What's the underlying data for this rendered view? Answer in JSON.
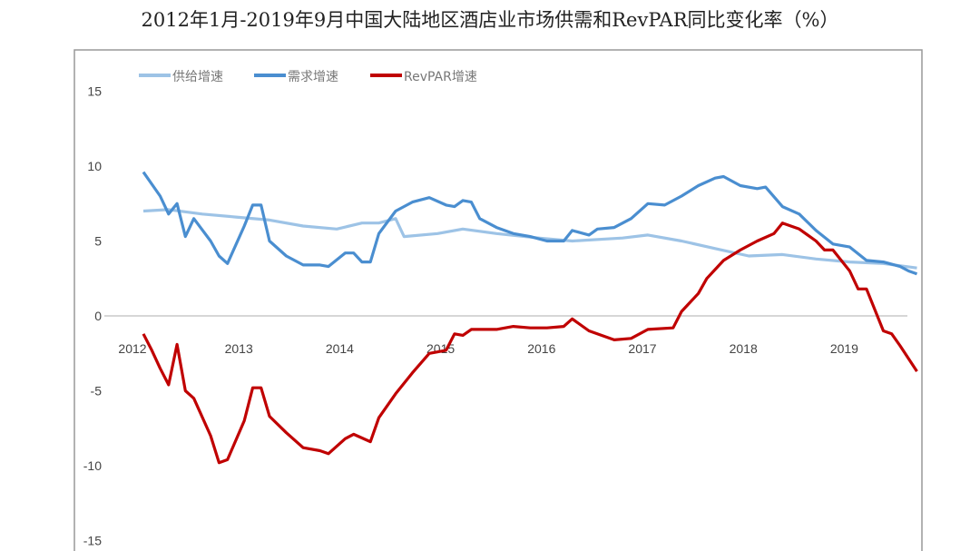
{
  "chart_data": {
    "type": "line",
    "title": "2012年1月-2019年9月中国大陆地区酒店业市场供需和RevPAR同比变化率（%）",
    "xlabel": "",
    "ylabel": "",
    "ylim": [
      -15,
      15
    ],
    "yticks": [
      "15",
      "10",
      "5",
      "0",
      "-5",
      "-10",
      "-15"
    ],
    "ytick_values": [
      15,
      10,
      5,
      0,
      -5,
      -10,
      -15
    ],
    "xticks": [
      "2012",
      "2013",
      "2014",
      "2015",
      "2016",
      "2017",
      "2018",
      "2019"
    ],
    "grid": false,
    "legend_position": "top-left",
    "series": [
      {
        "name": "供给增速",
        "color": "#9dc3e6",
        "x": [
          "2012-01",
          "2012-04",
          "2012-08",
          "2012-12",
          "2013-04",
          "2013-08",
          "2013-12",
          "2014-03",
          "2014-05",
          "2014-07",
          "2014-08",
          "2014-12",
          "2015-03",
          "2015-07",
          "2015-12",
          "2016-04",
          "2016-10",
          "2017-01",
          "2017-05",
          "2017-09",
          "2018-01",
          "2018-05",
          "2018-09",
          "2019-01",
          "2019-05",
          "2019-09"
        ],
        "values": [
          7.0,
          7.1,
          6.8,
          6.6,
          6.4,
          6.0,
          5.8,
          6.2,
          6.2,
          6.5,
          5.3,
          5.5,
          5.8,
          5.5,
          5.2,
          5.0,
          5.2,
          5.4,
          5.0,
          4.5,
          4.0,
          4.1,
          3.8,
          3.6,
          3.5,
          3.2
        ]
      },
      {
        "name": "需求增速",
        "color": "#4a8ed0",
        "x": [
          "2012-01",
          "2012-03",
          "2012-04",
          "2012-05",
          "2012-06",
          "2012-07",
          "2012-09",
          "2012-10",
          "2012-11",
          "2013-01",
          "2013-02",
          "2013-03",
          "2013-04",
          "2013-06",
          "2013-08",
          "2013-10",
          "2013-11",
          "2014-01",
          "2014-02",
          "2014-03",
          "2014-04",
          "2014-05",
          "2014-07",
          "2014-09",
          "2014-11",
          "2015-01",
          "2015-02",
          "2015-03",
          "2015-04",
          "2015-05",
          "2015-07",
          "2015-09",
          "2015-11",
          "2016-01",
          "2016-03",
          "2016-04",
          "2016-06",
          "2016-07",
          "2016-09",
          "2016-11",
          "2017-01",
          "2017-03",
          "2017-05",
          "2017-07",
          "2017-09",
          "2017-10",
          "2017-12",
          "2018-02",
          "2018-03",
          "2018-05",
          "2018-07",
          "2018-09",
          "2018-11",
          "2019-01",
          "2019-03",
          "2019-05",
          "2019-07",
          "2019-08",
          "2019-09"
        ],
        "values": [
          9.6,
          8.0,
          6.8,
          7.5,
          5.3,
          6.5,
          5.0,
          4.0,
          3.5,
          6.0,
          7.4,
          7.4,
          5.0,
          4.0,
          3.4,
          3.4,
          3.3,
          4.2,
          4.2,
          3.6,
          3.6,
          5.5,
          7.0,
          7.6,
          7.9,
          7.4,
          7.3,
          7.7,
          7.6,
          6.5,
          5.9,
          5.5,
          5.3,
          5.0,
          5.0,
          5.7,
          5.4,
          5.8,
          5.9,
          6.5,
          7.5,
          7.4,
          8.0,
          8.7,
          9.2,
          9.3,
          8.7,
          8.5,
          8.6,
          7.3,
          6.8,
          5.7,
          4.8,
          4.6,
          3.7,
          3.6,
          3.3,
          3.0,
          2.8
        ]
      },
      {
        "name": "RevPAR增速",
        "color": "#c00000",
        "x": [
          "2012-01",
          "2012-02",
          "2012-03",
          "2012-04",
          "2012-05",
          "2012-06",
          "2012-07",
          "2012-09",
          "2012-10",
          "2012-11",
          "2013-01",
          "2013-02",
          "2013-03",
          "2013-04",
          "2013-06",
          "2013-08",
          "2013-10",
          "2013-11",
          "2014-01",
          "2014-02",
          "2014-04",
          "2014-05",
          "2014-07",
          "2014-09",
          "2014-11",
          "2015-01",
          "2015-02",
          "2015-03",
          "2015-04",
          "2015-07",
          "2015-09",
          "2015-11",
          "2016-01",
          "2016-03",
          "2016-04",
          "2016-06",
          "2016-09",
          "2016-11",
          "2017-01",
          "2017-04",
          "2017-05",
          "2017-07",
          "2017-08",
          "2017-10",
          "2017-12",
          "2018-02",
          "2018-04",
          "2018-05",
          "2018-07",
          "2018-09",
          "2018-10",
          "2018-11",
          "2019-01",
          "2019-02",
          "2019-03",
          "2019-05",
          "2019-06",
          "2019-07",
          "2019-09"
        ],
        "values": [
          -1.2,
          -2.3,
          -3.5,
          -4.6,
          -1.9,
          -5.0,
          -5.5,
          -8.0,
          -9.8,
          -9.6,
          -7.0,
          -4.8,
          -4.8,
          -6.7,
          -7.8,
          -8.8,
          -9.0,
          -9.2,
          -8.2,
          -7.9,
          -8.4,
          -6.8,
          -5.2,
          -3.8,
          -2.5,
          -2.3,
          -1.2,
          -1.3,
          -0.9,
          -0.9,
          -0.7,
          -0.8,
          -0.8,
          -0.7,
          -0.2,
          -1.0,
          -1.6,
          -1.5,
          -0.9,
          -0.8,
          0.3,
          1.5,
          2.5,
          3.7,
          4.4,
          5.0,
          5.5,
          6.2,
          5.8,
          5.0,
          4.4,
          4.4,
          3.0,
          1.8,
          1.8,
          -1.0,
          -1.2,
          -2.0,
          -3.7
        ]
      }
    ]
  }
}
